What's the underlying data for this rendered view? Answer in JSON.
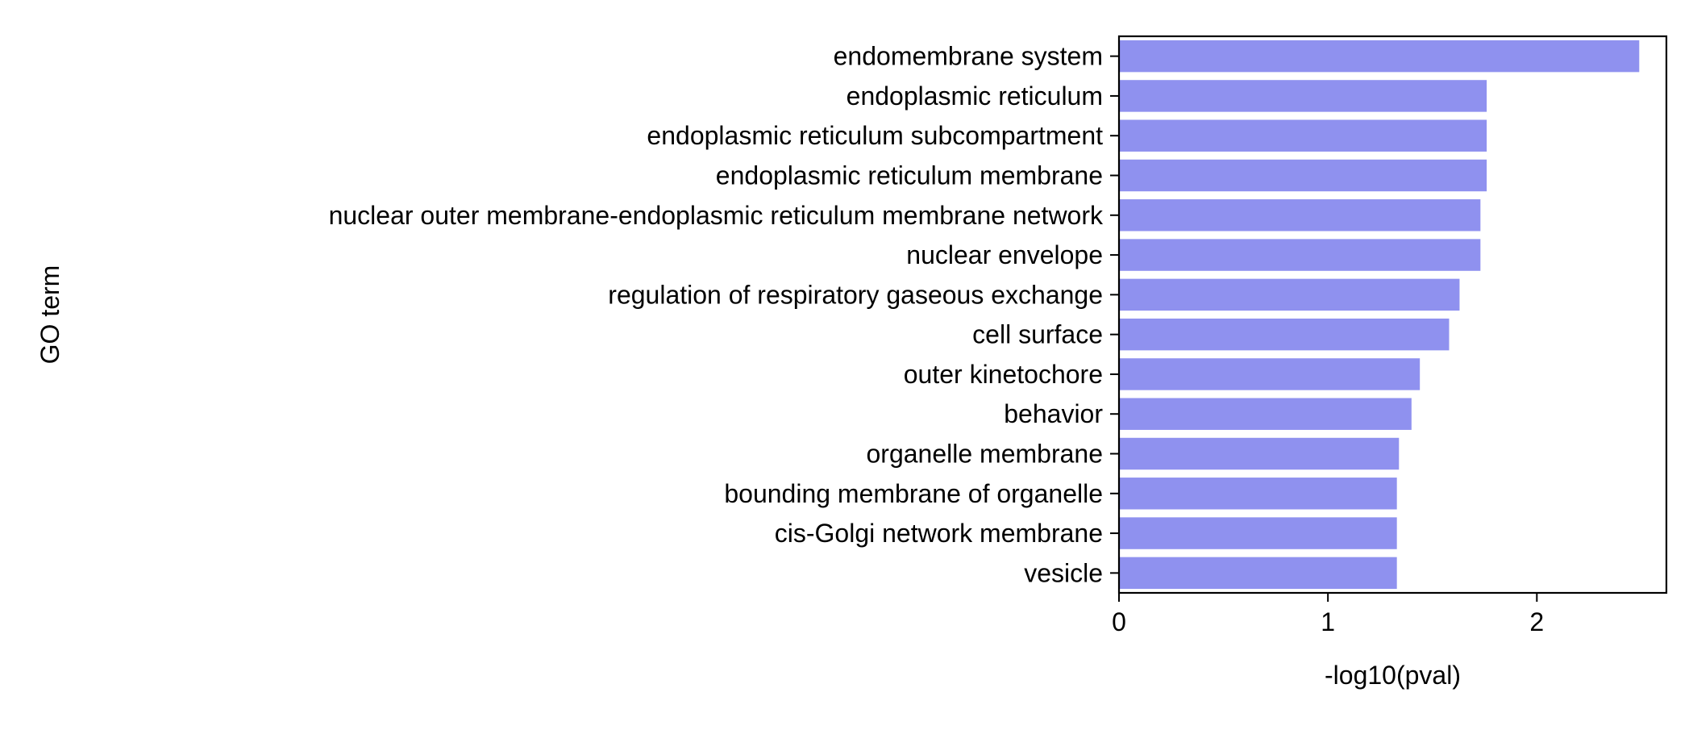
{
  "chart_data": {
    "type": "bar",
    "orientation": "horizontal",
    "title": "",
    "xlabel": "-log10(pval)",
    "ylabel": "GO term",
    "xlim": [
      0,
      2.62
    ],
    "xticks": [
      0,
      1,
      2
    ],
    "grid": false,
    "bar_color": "#8f91ef",
    "categories": [
      "endomembrane system",
      "endoplasmic reticulum",
      "endoplasmic reticulum subcompartment",
      "endoplasmic reticulum membrane",
      "nuclear outer membrane-endoplasmic reticulum membrane network",
      "nuclear envelope",
      "regulation of respiratory gaseous exchange",
      "cell surface",
      "outer kinetochore",
      "behavior",
      "organelle membrane",
      "bounding membrane of organelle",
      "cis-Golgi network membrane",
      "vesicle"
    ],
    "values": [
      2.49,
      1.76,
      1.76,
      1.76,
      1.73,
      1.73,
      1.63,
      1.58,
      1.44,
      1.4,
      1.34,
      1.33,
      1.33,
      1.33
    ]
  }
}
